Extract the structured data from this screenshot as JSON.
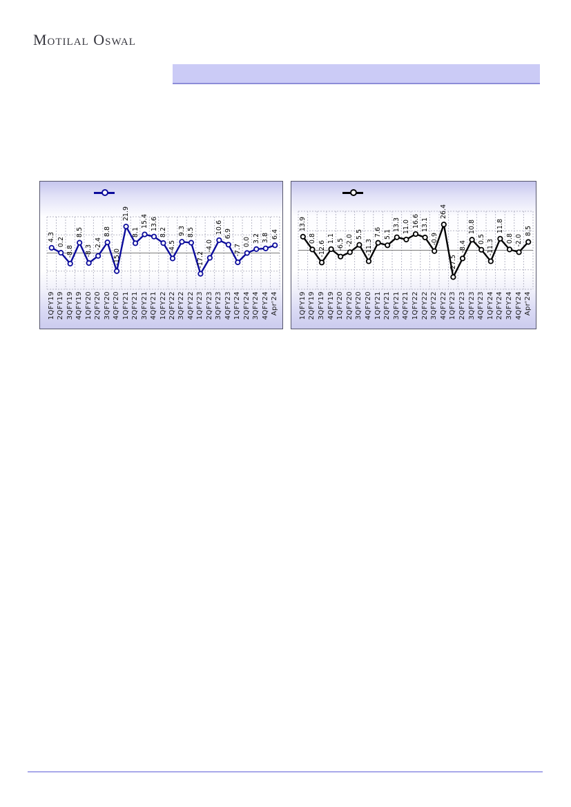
{
  "header": {
    "logo_text": "Motilal Oswal",
    "banner_text": ""
  },
  "chart_data": [
    {
      "type": "line",
      "title": "",
      "legend_label": "",
      "legend_position": "top",
      "series_color": "#0b0b9b",
      "marker": "circle-open",
      "grid": true,
      "ylim": [
        -30,
        30
      ],
      "ytick_step": 15,
      "categories": [
        "1QFY19",
        "2QFY19",
        "3QFY19",
        "4QFY19",
        "1QFY20",
        "2QFY20",
        "3QFY20",
        "4QFY20",
        "1QFY21",
        "2QFY21",
        "3QFY21",
        "4QFY21",
        "1QFY22",
        "2QFY22",
        "3QFY22",
        "4QFY22",
        "1QFY23",
        "2QFY23",
        "3QFY23",
        "4QFY23",
        "1QFY24",
        "2QFY24",
        "3QFY24",
        "4QFY24",
        "Apr'24"
      ],
      "values": [
        4.3,
        0.2,
        -8.8,
        8.5,
        -8.3,
        -2.4,
        8.8,
        -15.0,
        21.9,
        8.1,
        15.4,
        13.6,
        8.2,
        -4.5,
        9.3,
        8.5,
        -17.2,
        -4.0,
        10.6,
        6.9,
        -7.7,
        0.0,
        3.2,
        3.8,
        6.4
      ]
    },
    {
      "type": "line",
      "title": "",
      "legend_label": "",
      "legend_position": "top",
      "series_color": "#000000",
      "marker": "circle-open",
      "grid": true,
      "ylim": [
        -40,
        40
      ],
      "ytick_step": 20,
      "categories": [
        "1QFY19",
        "2QFY19",
        "3QFY19",
        "4QFY19",
        "1QFY20",
        "2QFY20",
        "3QFY20",
        "4QFY20",
        "1QFY21",
        "2QFY21",
        "3QFY21",
        "4QFY21",
        "1QFY22",
        "2QFY22",
        "3QFY22",
        "4QFY22",
        "1QFY23",
        "2QFY23",
        "3QFY23",
        "4QFY23",
        "1QFY24",
        "2QFY24",
        "3QFY24",
        "4QFY24",
        "Apr'24"
      ],
      "values": [
        13.9,
        0.8,
        -12.6,
        1.1,
        -6.5,
        -2.0,
        5.5,
        -11.3,
        7.6,
        5.1,
        13.3,
        11.0,
        16.6,
        13.1,
        -0.9,
        26.4,
        -27.5,
        -8.4,
        10.8,
        0.5,
        -11.3,
        11.8,
        0.8,
        -2.0,
        8.5
      ]
    }
  ],
  "colors": {
    "banner_fill": "#cbcbf6",
    "banner_border": "#8d8dd8",
    "footer_rule": "#a8a8ea",
    "gridline": "#b6b6c6",
    "zero_line": "#7a7a7a"
  }
}
